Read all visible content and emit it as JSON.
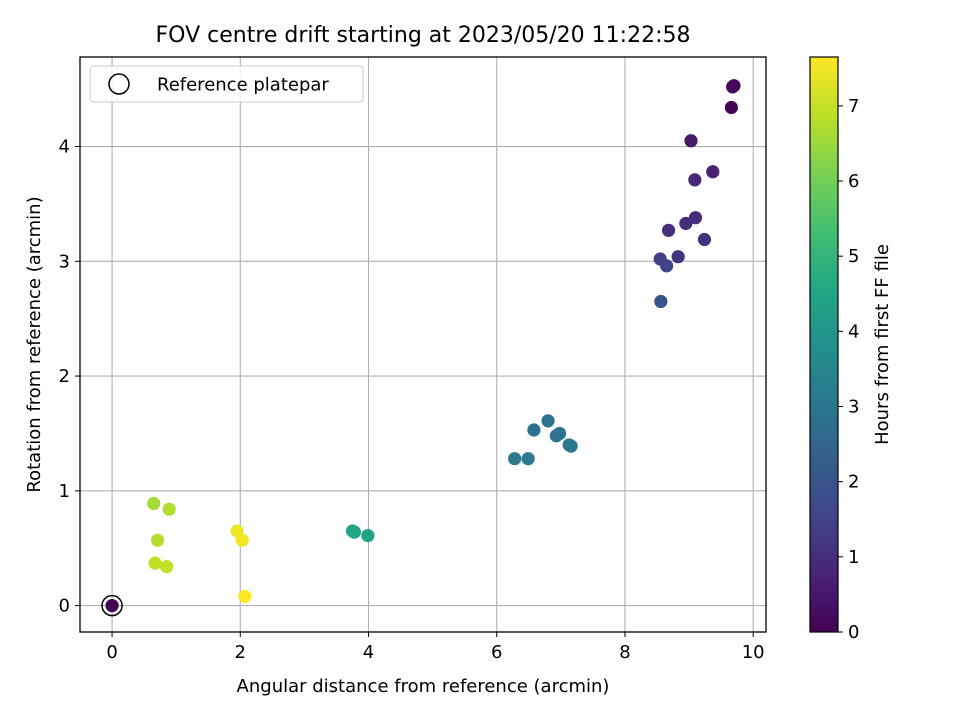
{
  "chart_data": {
    "type": "scatter",
    "title": "FOV centre drift starting at 2023/05/20 11:22:58",
    "xlabel": "Angular distance from reference (arcmin)",
    "ylabel": "Rotation from reference (arcmin)",
    "xlim": [
      -0.5,
      10.2
    ],
    "ylim": [
      -0.23,
      4.78
    ],
    "xticks": [
      0,
      2,
      4,
      6,
      8,
      10
    ],
    "yticks": [
      0,
      1,
      2,
      3,
      4
    ],
    "grid": true,
    "legend": {
      "position": "top-left",
      "entries": [
        "Reference platepar"
      ]
    },
    "colorbar": {
      "label": "Hours from first FF file",
      "range": [
        0,
        7.65
      ],
      "ticks": [
        0,
        1,
        2,
        3,
        4,
        5,
        6,
        7
      ],
      "colormap": "viridis"
    },
    "reference_point": {
      "x": 0,
      "y": 0
    },
    "points": [
      {
        "x": 0.0,
        "y": 0.0,
        "hours": 0.0
      },
      {
        "x": 9.7,
        "y": 4.53,
        "hours": 0.05
      },
      {
        "x": 9.68,
        "y": 4.52,
        "hours": 0.15
      },
      {
        "x": 9.66,
        "y": 4.34,
        "hours": 0.1
      },
      {
        "x": 9.03,
        "y": 4.05,
        "hours": 0.55
      },
      {
        "x": 9.37,
        "y": 3.78,
        "hours": 0.7
      },
      {
        "x": 9.09,
        "y": 3.71,
        "hours": 0.85
      },
      {
        "x": 9.1,
        "y": 3.38,
        "hours": 0.95
      },
      {
        "x": 8.95,
        "y": 3.33,
        "hours": 1.0
      },
      {
        "x": 8.68,
        "y": 3.27,
        "hours": 1.05
      },
      {
        "x": 9.24,
        "y": 3.19,
        "hours": 1.1
      },
      {
        "x": 8.83,
        "y": 3.04,
        "hours": 1.15
      },
      {
        "x": 8.55,
        "y": 3.02,
        "hours": 1.45
      },
      {
        "x": 8.65,
        "y": 2.96,
        "hours": 1.55
      },
      {
        "x": 8.56,
        "y": 2.65,
        "hours": 1.95
      },
      {
        "x": 6.8,
        "y": 1.61,
        "hours": 2.9
      },
      {
        "x": 6.58,
        "y": 1.53,
        "hours": 2.85
      },
      {
        "x": 6.98,
        "y": 1.5,
        "hours": 2.95
      },
      {
        "x": 6.93,
        "y": 1.48,
        "hours": 2.95
      },
      {
        "x": 7.13,
        "y": 1.4,
        "hours": 3.0
      },
      {
        "x": 7.16,
        "y": 1.39,
        "hours": 3.05
      },
      {
        "x": 6.28,
        "y": 1.28,
        "hours": 3.1
      },
      {
        "x": 6.49,
        "y": 1.28,
        "hours": 3.1
      },
      {
        "x": 3.75,
        "y": 0.65,
        "hours": 4.5
      },
      {
        "x": 3.78,
        "y": 0.64,
        "hours": 4.55
      },
      {
        "x": 3.99,
        "y": 0.61,
        "hours": 4.4
      },
      {
        "x": 0.65,
        "y": 0.89,
        "hours": 6.6
      },
      {
        "x": 0.89,
        "y": 0.84,
        "hours": 6.75
      },
      {
        "x": 0.71,
        "y": 0.57,
        "hours": 6.8
      },
      {
        "x": 0.67,
        "y": 0.37,
        "hours": 6.9
      },
      {
        "x": 0.85,
        "y": 0.34,
        "hours": 6.95
      },
      {
        "x": 1.95,
        "y": 0.65,
        "hours": 7.5
      },
      {
        "x": 2.03,
        "y": 0.57,
        "hours": 7.55
      },
      {
        "x": 2.07,
        "y": 0.08,
        "hours": 7.65
      }
    ]
  }
}
